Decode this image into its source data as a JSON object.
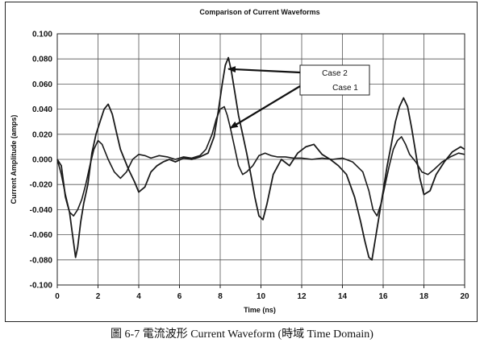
{
  "caption": "圖 6-7  電流波形 Current Waveform (時域  Time Domain)",
  "chart_data": {
    "type": "line",
    "title": "Comparison of Current Waveforms",
    "xlabel": "Time (ns)",
    "ylabel": "Current Amplitude (amps)",
    "xlim": [
      0,
      20
    ],
    "ylim": [
      -0.1,
      0.1
    ],
    "xticks": [
      "0",
      "2",
      "4",
      "6",
      "8",
      "10",
      "12",
      "14",
      "16",
      "18",
      "20"
    ],
    "yticks": [
      "-0.100",
      "-0.080",
      "-0.060",
      "-0.040",
      "-0.020",
      "0.000",
      "0.020",
      "0.040",
      "0.060",
      "0.080",
      "0.100"
    ],
    "grid": true,
    "colors": {
      "line": "#1a1a1a",
      "grid": "#555555"
    },
    "annotations": [
      {
        "text": "Case 2",
        "points_to": [
          8.4,
          0.072
        ]
      },
      {
        "text": "Case 1",
        "points_to": [
          8.5,
          0.025
        ]
      }
    ],
    "series": [
      {
        "name": "Case 2",
        "x": [
          0,
          0.2,
          0.4,
          0.6,
          0.75,
          0.9,
          1.0,
          1.15,
          1.3,
          1.5,
          1.7,
          1.9,
          2.1,
          2.3,
          2.5,
          2.7,
          2.9,
          3.1,
          3.3,
          3.5,
          3.8,
          4.0,
          4.3,
          4.6,
          4.9,
          5.2,
          5.5,
          5.8,
          6.2,
          6.6,
          7.0,
          7.4,
          7.7,
          7.9,
          8.1,
          8.25,
          8.4,
          8.55,
          8.7,
          8.9,
          9.1,
          9.3,
          9.5,
          9.7,
          9.9,
          10.1,
          10.3,
          10.6,
          11.0,
          11.4,
          11.8,
          12.2,
          12.6,
          13.0,
          13.4,
          13.8,
          14.2,
          14.6,
          14.9,
          15.1,
          15.3,
          15.45,
          15.6,
          15.8,
          16.0,
          16.2,
          16.4,
          16.6,
          16.8,
          17.0,
          17.2,
          17.4,
          17.6,
          17.8,
          18.0,
          18.3,
          18.6,
          19.0,
          19.4,
          19.8,
          20.0
        ],
        "y": [
          0.0,
          -0.005,
          -0.03,
          -0.042,
          -0.06,
          -0.078,
          -0.07,
          -0.05,
          -0.035,
          -0.02,
          0.005,
          0.02,
          0.03,
          0.04,
          0.044,
          0.036,
          0.022,
          0.008,
          0.0,
          -0.008,
          -0.018,
          -0.026,
          -0.022,
          -0.01,
          -0.005,
          -0.002,
          0.0,
          -0.002,
          0.001,
          0.0,
          0.002,
          0.005,
          0.018,
          0.038,
          0.06,
          0.075,
          0.081,
          0.07,
          0.055,
          0.035,
          0.02,
          0.005,
          -0.012,
          -0.03,
          -0.045,
          -0.048,
          -0.035,
          -0.012,
          0.0,
          -0.005,
          0.005,
          0.01,
          0.012,
          0.004,
          0.0,
          -0.005,
          -0.012,
          -0.03,
          -0.05,
          -0.065,
          -0.078,
          -0.08,
          -0.065,
          -0.045,
          -0.025,
          -0.005,
          0.012,
          0.03,
          0.042,
          0.049,
          0.042,
          0.025,
          0.005,
          -0.015,
          -0.028,
          -0.025,
          -0.012,
          -0.002,
          0.006,
          0.01,
          0.008
        ]
      },
      {
        "name": "Case 1",
        "x": [
          0,
          0.2,
          0.4,
          0.6,
          0.8,
          1.0,
          1.2,
          1.4,
          1.6,
          1.8,
          2.0,
          2.2,
          2.5,
          2.8,
          3.1,
          3.4,
          3.7,
          4.0,
          4.3,
          4.6,
          5.0,
          5.4,
          5.8,
          6.2,
          6.6,
          7.0,
          7.3,
          7.6,
          7.8,
          8.0,
          8.2,
          8.35,
          8.5,
          8.7,
          8.9,
          9.1,
          9.3,
          9.6,
          9.9,
          10.2,
          10.5,
          10.8,
          11.2,
          11.6,
          12.0,
          12.5,
          13.0,
          13.5,
          14.0,
          14.5,
          15.0,
          15.3,
          15.5,
          15.7,
          15.9,
          16.1,
          16.3,
          16.5,
          16.7,
          16.9,
          17.1,
          17.3,
          17.6,
          17.9,
          18.2,
          18.5,
          18.9,
          19.3,
          19.7,
          20.0
        ],
        "y": [
          0.0,
          -0.012,
          -0.028,
          -0.042,
          -0.045,
          -0.04,
          -0.032,
          -0.02,
          -0.005,
          0.008,
          0.015,
          0.012,
          0.0,
          -0.01,
          -0.015,
          -0.01,
          0.0,
          0.004,
          0.003,
          0.001,
          0.003,
          0.002,
          0.0,
          0.002,
          0.001,
          0.003,
          0.008,
          0.02,
          0.032,
          0.04,
          0.042,
          0.035,
          0.025,
          0.01,
          -0.005,
          -0.012,
          -0.01,
          -0.005,
          0.003,
          0.005,
          0.003,
          0.002,
          0.002,
          0.001,
          0.001,
          0.0,
          0.001,
          0.0,
          0.001,
          -0.002,
          -0.01,
          -0.025,
          -0.04,
          -0.045,
          -0.035,
          -0.02,
          -0.005,
          0.008,
          0.015,
          0.018,
          0.012,
          0.004,
          -0.002,
          -0.01,
          -0.012,
          -0.008,
          -0.002,
          0.002,
          0.005,
          0.004
        ]
      }
    ]
  }
}
